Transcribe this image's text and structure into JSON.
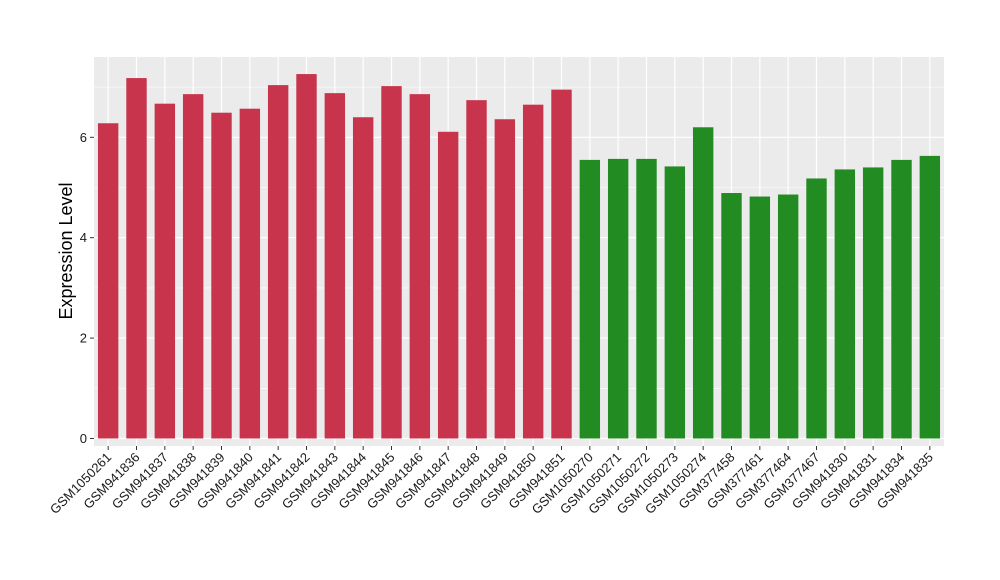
{
  "chart_data": {
    "type": "bar",
    "title": "",
    "xlabel": "",
    "ylabel": "Expression Level",
    "ylim": [
      -0.15,
      7.6
    ],
    "yticks": [
      0,
      2,
      4,
      6
    ],
    "grid": true,
    "legend": "none",
    "background": "#ebebeb",
    "gridline_color": "#ffffff",
    "categories": [
      "GSM1050261",
      "GSM941836",
      "GSM941837",
      "GSM941838",
      "GSM941839",
      "GSM941840",
      "GSM941841",
      "GSM941842",
      "GSM941843",
      "GSM941844",
      "GSM941845",
      "GSM941846",
      "GSM941847",
      "GSM941848",
      "GSM941849",
      "GSM941850",
      "GSM941851",
      "GSM1050270",
      "GSM1050271",
      "GSM1050272",
      "GSM1050273",
      "GSM1050274",
      "GSM377458",
      "GSM377461",
      "GSM377464",
      "GSM377467",
      "GSM941830",
      "GSM941831",
      "GSM941834",
      "GSM941835"
    ],
    "values": [
      6.28,
      7.18,
      6.67,
      6.86,
      6.49,
      6.57,
      7.04,
      7.26,
      6.88,
      6.4,
      7.02,
      6.86,
      6.11,
      6.74,
      6.36,
      6.65,
      6.95,
      5.55,
      5.57,
      5.57,
      5.42,
      6.2,
      4.89,
      4.82,
      4.86,
      5.18,
      5.36,
      5.4,
      5.55,
      5.63
    ],
    "colors": [
      "#c8344b",
      "#c8344b",
      "#c8344b",
      "#c8344b",
      "#c8344b",
      "#c8344b",
      "#c8344b",
      "#c8344b",
      "#c8344b",
      "#c8344b",
      "#c8344b",
      "#c8344b",
      "#c8344b",
      "#c8344b",
      "#c8344b",
      "#c8344b",
      "#c8344b",
      "#228b22",
      "#228b22",
      "#228b22",
      "#228b22",
      "#228b22",
      "#228b22",
      "#228b22",
      "#228b22",
      "#228b22",
      "#228b22",
      "#228b22",
      "#228b22",
      "#228b22"
    ]
  }
}
